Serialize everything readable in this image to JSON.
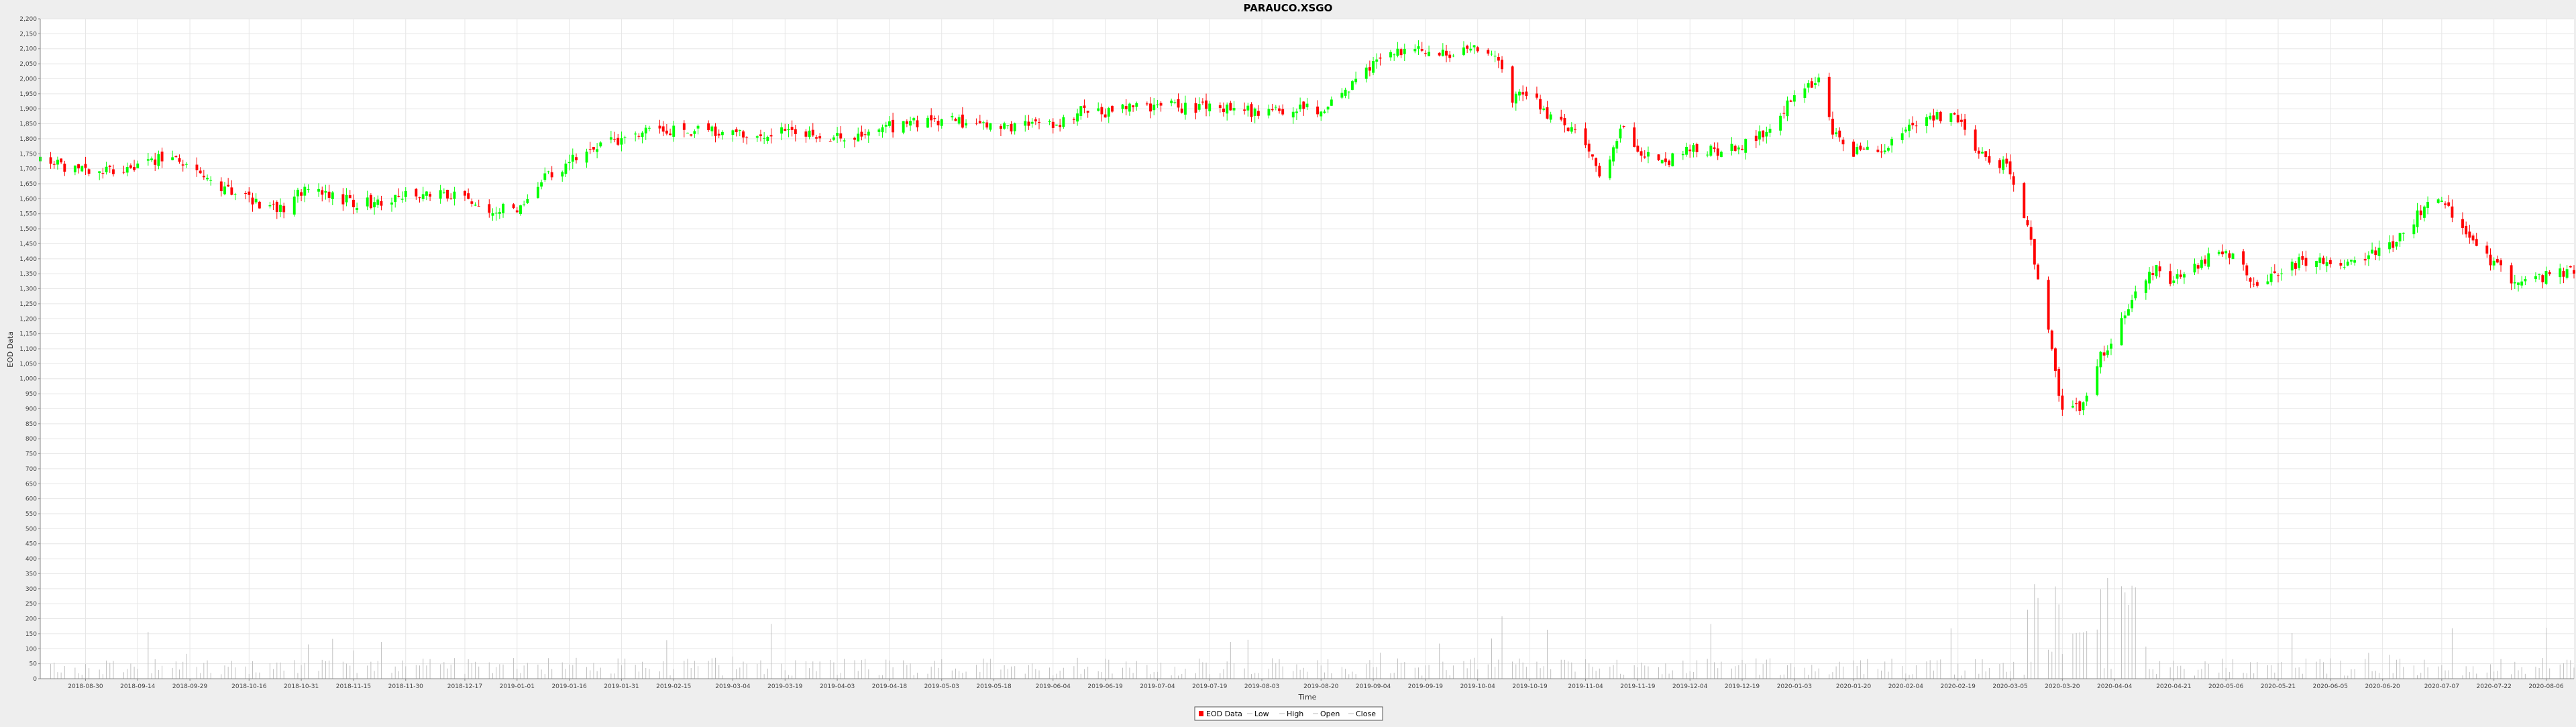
{
  "window": {
    "background": "#eeeeee"
  },
  "chart_data": {
    "type": "candlestick",
    "title": "PARAUCO.XSGO",
    "xlabel": "Time",
    "ylabel": "EOD Data",
    "ylim": [
      0,
      2200
    ],
    "ytick_step": 50,
    "xlim": [
      "2018-08-17",
      "2020-08-14"
    ],
    "grid": true,
    "legend_position": "bottom-center",
    "legend": [
      "EOD Data",
      "Low",
      "High",
      "Open",
      "Close"
    ],
    "colors": {
      "up": "#00ff00",
      "down": "#ff0000",
      "volume": "#c0c0c0",
      "grid": "#e6e6e6",
      "plot_background": "#ffffff",
      "axis": "#888888"
    },
    "x_ticks": [
      "2018-08-30",
      "2018-09-14",
      "2018-09-29",
      "2018-10-16",
      "2018-10-31",
      "2018-11-15",
      "2018-11-30",
      "2018-12-17",
      "2019-01-01",
      "2019-01-16",
      "2019-01-31",
      "2019-02-15",
      "2019-03-04",
      "2019-03-19",
      "2019-04-03",
      "2019-04-18",
      "2019-05-03",
      "2019-05-18",
      "2019-06-04",
      "2019-06-19",
      "2019-07-04",
      "2019-07-19",
      "2019-08-03",
      "2019-08-20",
      "2019-09-04",
      "2019-09-19",
      "2019-10-04",
      "2019-10-19",
      "2019-11-04",
      "2019-11-19",
      "2019-12-04",
      "2019-12-19",
      "2020-01-03",
      "2020-01-20",
      "2020-02-04",
      "2020-02-19",
      "2020-03-05",
      "2020-03-20",
      "2020-04-04",
      "2020-04-21",
      "2020-05-06",
      "2020-05-21",
      "2020-06-05",
      "2020-06-20",
      "2020-07-07",
      "2020-07-22",
      "2020-08-06"
    ],
    "close_anchors": [
      [
        "2018-08-17",
        1720
      ],
      [
        "2018-08-30",
        1700
      ],
      [
        "2018-09-05",
        1700
      ],
      [
        "2018-09-14",
        1710
      ],
      [
        "2018-09-20",
        1735
      ],
      [
        "2018-09-29",
        1720
      ],
      [
        "2018-10-08",
        1640
      ],
      [
        "2018-10-16",
        1600
      ],
      [
        "2018-10-25",
        1560
      ],
      [
        "2018-10-31",
        1630
      ],
      [
        "2018-11-07",
        1610
      ],
      [
        "2018-11-15",
        1590
      ],
      [
        "2018-11-23",
        1580
      ],
      [
        "2018-11-30",
        1610
      ],
      [
        "2018-12-07",
        1620
      ],
      [
        "2018-12-17",
        1600
      ],
      [
        "2018-12-24",
        1570
      ],
      [
        "2019-01-01",
        1570
      ],
      [
        "2019-01-08",
        1660
      ],
      [
        "2019-01-16",
        1720
      ],
      [
        "2019-01-24",
        1780
      ],
      [
        "2019-01-31",
        1800
      ],
      [
        "2019-02-08",
        1820
      ],
      [
        "2019-02-15",
        1830
      ],
      [
        "2019-03-04",
        1820
      ],
      [
        "2019-03-19",
        1820
      ],
      [
        "2019-04-03",
        1800
      ],
      [
        "2019-04-18",
        1840
      ],
      [
        "2019-05-03",
        1860
      ],
      [
        "2019-05-18",
        1840
      ],
      [
        "2019-06-04",
        1840
      ],
      [
        "2019-06-12",
        1890
      ],
      [
        "2019-06-19",
        1890
      ],
      [
        "2019-07-04",
        1910
      ],
      [
        "2019-07-19",
        1900
      ],
      [
        "2019-08-03",
        1890
      ],
      [
        "2019-08-20",
        1900
      ],
      [
        "2019-08-28",
        1960
      ],
      [
        "2019-09-04",
        2060
      ],
      [
        "2019-09-10",
        2090
      ],
      [
        "2019-09-19",
        2090
      ],
      [
        "2019-09-25",
        2080
      ],
      [
        "2019-10-04",
        2100
      ],
      [
        "2019-10-10",
        2080
      ],
      [
        "2019-10-14",
        1940
      ],
      [
        "2019-10-19",
        1960
      ],
      [
        "2019-10-25",
        1870
      ],
      [
        "2019-10-31",
        1830
      ],
      [
        "2019-11-04",
        1760
      ],
      [
        "2019-11-08",
        1690
      ],
      [
        "2019-11-12",
        1770
      ],
      [
        "2019-11-15",
        1860
      ],
      [
        "2019-11-19",
        1770
      ],
      [
        "2019-11-26",
        1720
      ],
      [
        "2019-12-04",
        1760
      ],
      [
        "2019-12-11",
        1760
      ],
      [
        "2019-12-19",
        1780
      ],
      [
        "2019-12-26",
        1820
      ],
      [
        "2020-01-03",
        1940
      ],
      [
        "2020-01-10",
        1990
      ],
      [
        "2020-01-14",
        1820
      ],
      [
        "2020-01-20",
        1760
      ],
      [
        "2020-01-27",
        1760
      ],
      [
        "2020-02-04",
        1830
      ],
      [
        "2020-02-10",
        1880
      ],
      [
        "2020-02-19",
        1870
      ],
      [
        "2020-02-25",
        1760
      ],
      [
        "2020-03-02",
        1720
      ],
      [
        "2020-03-05",
        1700
      ],
      [
        "2020-03-10",
        1500
      ],
      [
        "2020-03-13",
        1350
      ],
      [
        "2020-03-17",
        1100
      ],
      [
        "2020-03-20",
        880
      ],
      [
        "2020-03-25",
        900
      ],
      [
        "2020-03-30",
        1050
      ],
      [
        "2020-04-04",
        1150
      ],
      [
        "2020-04-10",
        1280
      ],
      [
        "2020-04-16",
        1380
      ],
      [
        "2020-04-21",
        1320
      ],
      [
        "2020-04-28",
        1380
      ],
      [
        "2020-05-06",
        1430
      ],
      [
        "2020-05-14",
        1320
      ],
      [
        "2020-05-21",
        1360
      ],
      [
        "2020-05-28",
        1390
      ],
      [
        "2020-06-05",
        1400
      ],
      [
        "2020-06-12",
        1380
      ],
      [
        "2020-06-20",
        1430
      ],
      [
        "2020-06-26",
        1480
      ],
      [
        "2020-07-02",
        1580
      ],
      [
        "2020-07-07",
        1600
      ],
      [
        "2020-07-14",
        1480
      ],
      [
        "2020-07-22",
        1380
      ],
      [
        "2020-07-29",
        1320
      ],
      [
        "2020-08-06",
        1340
      ],
      [
        "2020-08-14",
        1360
      ]
    ],
    "volume_max": 550
  }
}
